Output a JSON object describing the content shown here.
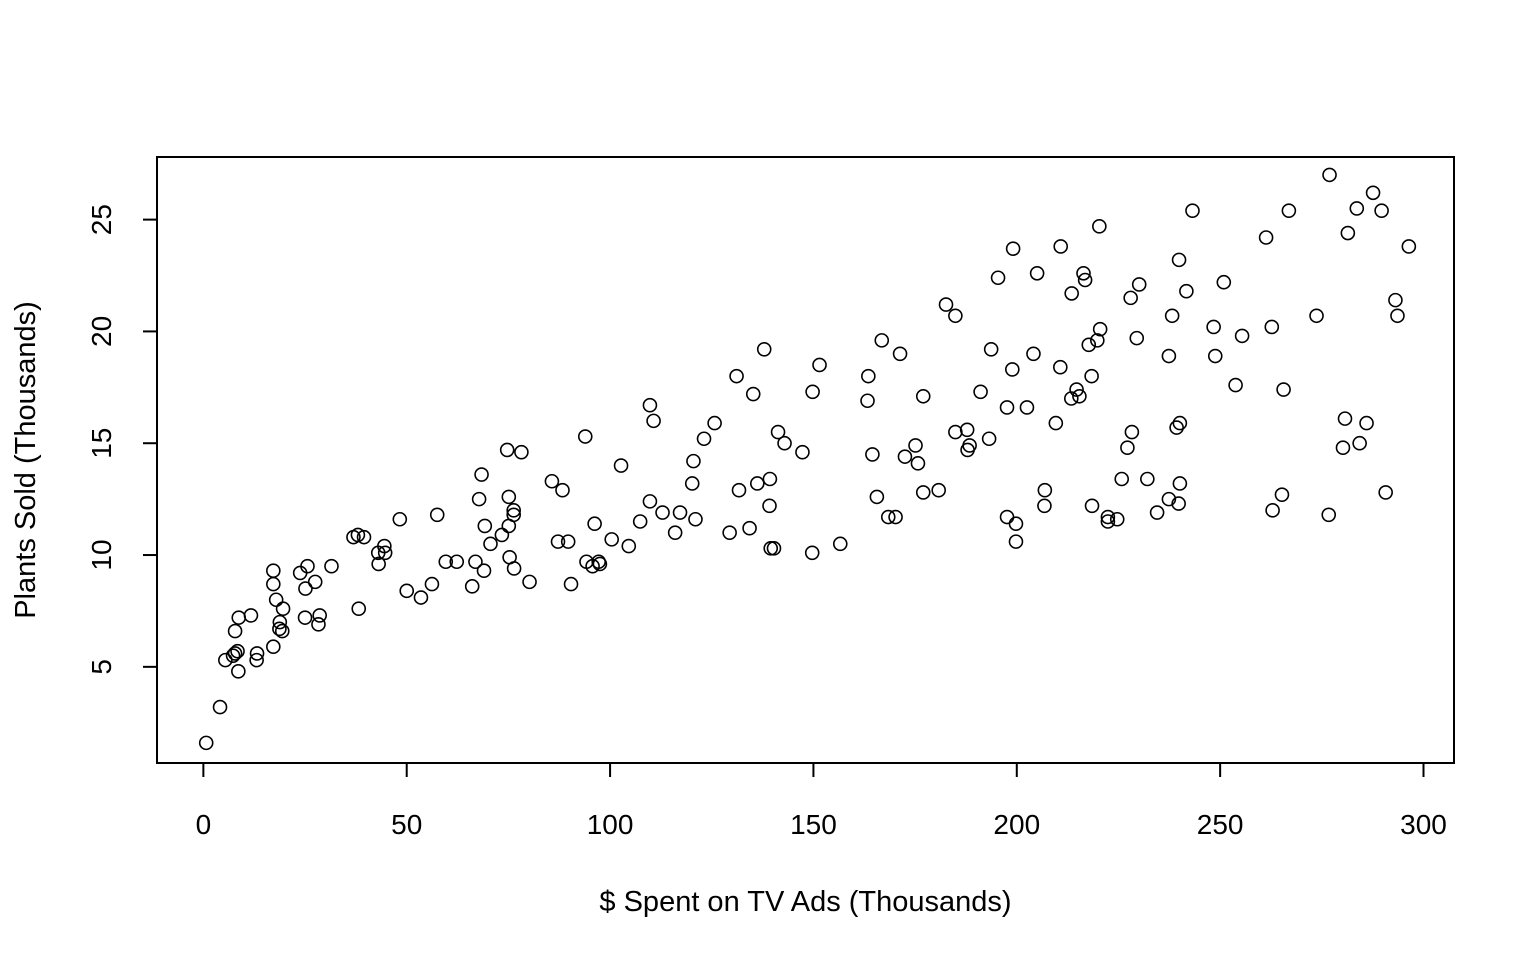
{
  "chart_data": {
    "type": "scatter",
    "title": "",
    "xlabel": "$ Spent on TV Ads (Thousands)",
    "ylabel": "Plants Sold (Thousands)",
    "xlim": [
      -11.4,
      307.5
    ],
    "ylim": [
      0.7,
      27.8
    ],
    "x_ticks": [
      0,
      50,
      100,
      150,
      200,
      250,
      300
    ],
    "y_ticks": [
      5,
      10,
      15,
      20,
      25
    ],
    "grid": false,
    "legend": "none",
    "marker": "open-circle",
    "marker_color": "#000000",
    "points": [
      [
        0.7,
        1.6
      ],
      [
        4.1,
        3.2
      ],
      [
        5.4,
        5.3
      ],
      [
        7.3,
        5.5
      ],
      [
        7.8,
        5.6
      ],
      [
        7.8,
        6.6
      ],
      [
        8.4,
        5.7
      ],
      [
        8.6,
        4.8
      ],
      [
        8.7,
        7.2
      ],
      [
        11.7,
        7.3
      ],
      [
        13.1,
        5.3
      ],
      [
        13.2,
        5.6
      ],
      [
        17.2,
        5.9
      ],
      [
        17.2,
        8.7
      ],
      [
        17.2,
        9.3
      ],
      [
        17.9,
        8.0
      ],
      [
        18.7,
        6.7
      ],
      [
        18.8,
        7.0
      ],
      [
        19.4,
        6.6
      ],
      [
        19.6,
        7.6
      ],
      [
        23.8,
        9.2
      ],
      [
        25.0,
        7.2
      ],
      [
        25.1,
        8.5
      ],
      [
        25.6,
        9.5
      ],
      [
        27.5,
        8.8
      ],
      [
        28.3,
        6.9
      ],
      [
        28.6,
        7.3
      ],
      [
        31.5,
        9.5
      ],
      [
        36.9,
        10.8
      ],
      [
        38.0,
        10.9
      ],
      [
        38.2,
        7.6
      ],
      [
        39.5,
        10.8
      ],
      [
        43.0,
        10.1
      ],
      [
        43.1,
        9.6
      ],
      [
        44.5,
        10.4
      ],
      [
        44.7,
        10.1
      ],
      [
        48.3,
        11.6
      ],
      [
        50.0,
        8.4
      ],
      [
        53.5,
        8.1
      ],
      [
        56.2,
        8.7
      ],
      [
        57.5,
        11.8
      ],
      [
        59.6,
        9.7
      ],
      [
        62.3,
        9.7
      ],
      [
        66.1,
        8.6
      ],
      [
        66.9,
        9.7
      ],
      [
        67.8,
        12.5
      ],
      [
        68.4,
        13.6
      ],
      [
        69.0,
        9.3
      ],
      [
        69.2,
        11.3
      ],
      [
        70.6,
        10.5
      ],
      [
        73.4,
        10.9
      ],
      [
        74.7,
        14.7
      ],
      [
        75.1,
        11.3
      ],
      [
        75.1,
        12.6
      ],
      [
        75.3,
        9.9
      ],
      [
        76.3,
        12.0
      ],
      [
        76.3,
        11.8
      ],
      [
        76.4,
        9.4
      ],
      [
        78.2,
        14.6
      ],
      [
        80.2,
        8.8
      ],
      [
        85.7,
        13.3
      ],
      [
        87.2,
        10.6
      ],
      [
        88.3,
        12.9
      ],
      [
        89.7,
        10.6
      ],
      [
        90.4,
        8.7
      ],
      [
        93.9,
        15.3
      ],
      [
        94.2,
        9.7
      ],
      [
        95.7,
        9.5
      ],
      [
        96.2,
        11.4
      ],
      [
        97.2,
        9.7
      ],
      [
        97.5,
        9.6
      ],
      [
        100.4,
        10.7
      ],
      [
        102.7,
        14.0
      ],
      [
        104.6,
        10.4
      ],
      [
        107.4,
        11.5
      ],
      [
        109.8,
        12.4
      ],
      [
        109.8,
        16.7
      ],
      [
        110.7,
        16.0
      ],
      [
        112.9,
        11.9
      ],
      [
        116.0,
        11.0
      ],
      [
        117.2,
        11.9
      ],
      [
        120.2,
        13.2
      ],
      [
        120.5,
        14.2
      ],
      [
        121.0,
        11.6
      ],
      [
        123.1,
        15.2
      ],
      [
        125.7,
        15.9
      ],
      [
        129.4,
        11.0
      ],
      [
        131.1,
        18.0
      ],
      [
        131.7,
        12.9
      ],
      [
        134.3,
        11.2
      ],
      [
        135.2,
        17.2
      ],
      [
        136.2,
        13.2
      ],
      [
        137.9,
        19.2
      ],
      [
        139.2,
        12.2
      ],
      [
        139.3,
        13.4
      ],
      [
        139.5,
        10.3
      ],
      [
        140.3,
        10.3
      ],
      [
        141.3,
        15.5
      ],
      [
        142.9,
        15.0
      ],
      [
        147.3,
        14.6
      ],
      [
        149.7,
        10.1
      ],
      [
        149.8,
        17.3
      ],
      [
        151.5,
        18.5
      ],
      [
        156.6,
        10.5
      ],
      [
        163.3,
        16.9
      ],
      [
        163.5,
        18.0
      ],
      [
        164.5,
        14.5
      ],
      [
        165.6,
        12.6
      ],
      [
        166.8,
        19.6
      ],
      [
        168.4,
        11.7
      ],
      [
        170.2,
        11.7
      ],
      [
        171.3,
        19.0
      ],
      [
        172.5,
        14.4
      ],
      [
        175.1,
        14.9
      ],
      [
        175.7,
        14.1
      ],
      [
        177.0,
        12.8
      ],
      [
        177.0,
        17.1
      ],
      [
        180.8,
        12.9
      ],
      [
        182.6,
        21.2
      ],
      [
        184.9,
        15.5
      ],
      [
        184.9,
        20.7
      ],
      [
        187.8,
        15.6
      ],
      [
        187.9,
        14.7
      ],
      [
        188.4,
        14.9
      ],
      [
        191.1,
        17.3
      ],
      [
        193.2,
        15.2
      ],
      [
        193.7,
        19.2
      ],
      [
        195.4,
        22.4
      ],
      [
        197.6,
        11.7
      ],
      [
        197.6,
        16.6
      ],
      [
        198.9,
        18.3
      ],
      [
        199.1,
        23.7
      ],
      [
        199.8,
        11.4
      ],
      [
        199.8,
        10.6
      ],
      [
        202.5,
        16.6
      ],
      [
        204.1,
        19.0
      ],
      [
        205.0,
        22.6
      ],
      [
        206.8,
        12.2
      ],
      [
        206.9,
        12.9
      ],
      [
        209.6,
        15.9
      ],
      [
        210.7,
        18.4
      ],
      [
        210.8,
        23.8
      ],
      [
        213.4,
        17.0
      ],
      [
        213.5,
        21.7
      ],
      [
        214.7,
        17.4
      ],
      [
        215.4,
        17.1
      ],
      [
        216.4,
        22.6
      ],
      [
        216.8,
        22.3
      ],
      [
        217.7,
        19.4
      ],
      [
        218.4,
        18.0
      ],
      [
        218.5,
        12.2
      ],
      [
        219.8,
        19.6
      ],
      [
        220.3,
        24.7
      ],
      [
        220.5,
        20.1
      ],
      [
        222.4,
        11.7
      ],
      [
        222.4,
        11.5
      ],
      [
        224.7,
        11.6
      ],
      [
        225.8,
        13.4
      ],
      [
        227.2,
        14.8
      ],
      [
        228.0,
        21.5
      ],
      [
        228.3,
        15.5
      ],
      [
        229.5,
        19.7
      ],
      [
        230.1,
        22.1
      ],
      [
        232.1,
        13.4
      ],
      [
        234.5,
        11.9
      ],
      [
        237.4,
        18.9
      ],
      [
        237.4,
        12.5
      ],
      [
        238.2,
        20.7
      ],
      [
        239.3,
        15.7
      ],
      [
        239.8,
        12.3
      ],
      [
        239.9,
        23.2
      ],
      [
        240.1,
        15.9
      ],
      [
        240.1,
        13.2
      ],
      [
        241.7,
        21.8
      ],
      [
        243.2,
        25.4
      ],
      [
        248.4,
        20.2
      ],
      [
        248.8,
        18.9
      ],
      [
        250.9,
        22.2
      ],
      [
        253.8,
        17.6
      ],
      [
        255.4,
        19.8
      ],
      [
        261.3,
        24.2
      ],
      [
        262.7,
        20.2
      ],
      [
        262.9,
        12.0
      ],
      [
        265.2,
        12.7
      ],
      [
        265.6,
        17.4
      ],
      [
        266.9,
        25.4
      ],
      [
        273.7,
        20.7
      ],
      [
        276.7,
        11.8
      ],
      [
        276.9,
        27.0
      ],
      [
        280.2,
        14.8
      ],
      [
        280.7,
        16.1
      ],
      [
        281.4,
        24.4
      ],
      [
        283.6,
        25.5
      ],
      [
        284.3,
        15.0
      ],
      [
        286.0,
        15.9
      ],
      [
        287.6,
        26.2
      ],
      [
        289.7,
        25.4
      ],
      [
        290.7,
        12.8
      ],
      [
        293.1,
        21.4
      ],
      [
        293.6,
        20.7
      ],
      [
        296.4,
        23.8
      ]
    ]
  }
}
